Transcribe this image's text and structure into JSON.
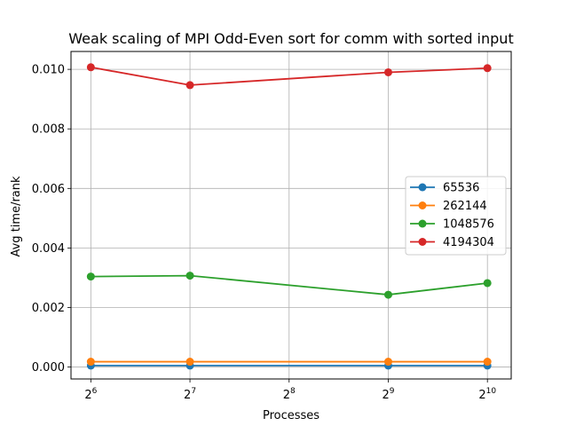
{
  "chart_data": {
    "type": "line",
    "title": "Weak scaling of MPI Odd-Even sort for comm with sorted input",
    "xlabel": "Processes",
    "ylabel": "Avg time/rank",
    "x_scale": "log2",
    "x": [
      64,
      128,
      512,
      1024
    ],
    "x_ticks": [
      {
        "base": "2",
        "exp": "6"
      },
      {
        "base": "2",
        "exp": "7"
      },
      {
        "base": "2",
        "exp": "8"
      },
      {
        "base": "2",
        "exp": "9"
      },
      {
        "base": "2",
        "exp": "10"
      }
    ],
    "x_tick_values": [
      64,
      128,
      256,
      512,
      1024
    ],
    "y_ticks": [
      "0.000",
      "0.002",
      "0.004",
      "0.006",
      "0.008",
      "0.010"
    ],
    "y_tick_values": [
      0,
      0.002,
      0.004,
      0.006,
      0.008,
      0.01
    ],
    "ylim": [
      -0.0004,
      0.0106
    ],
    "xlim_exp": [
      5.8,
      10.24
    ],
    "grid": true,
    "legend_position": "center-right",
    "series": [
      {
        "name": "65536",
        "color": "#1f77b4",
        "values": [
          5e-05,
          5e-05,
          5e-05,
          5e-05
        ]
      },
      {
        "name": "262144",
        "color": "#ff7f0e",
        "values": [
          0.00018,
          0.00018,
          0.00018,
          0.00018
        ]
      },
      {
        "name": "1048576",
        "color": "#2ca02c",
        "values": [
          0.00304,
          0.00307,
          0.00243,
          0.00282
        ]
      },
      {
        "name": "4194304",
        "color": "#d62728",
        "values": [
          0.01007,
          0.00947,
          0.0099,
          0.01004
        ]
      }
    ]
  }
}
